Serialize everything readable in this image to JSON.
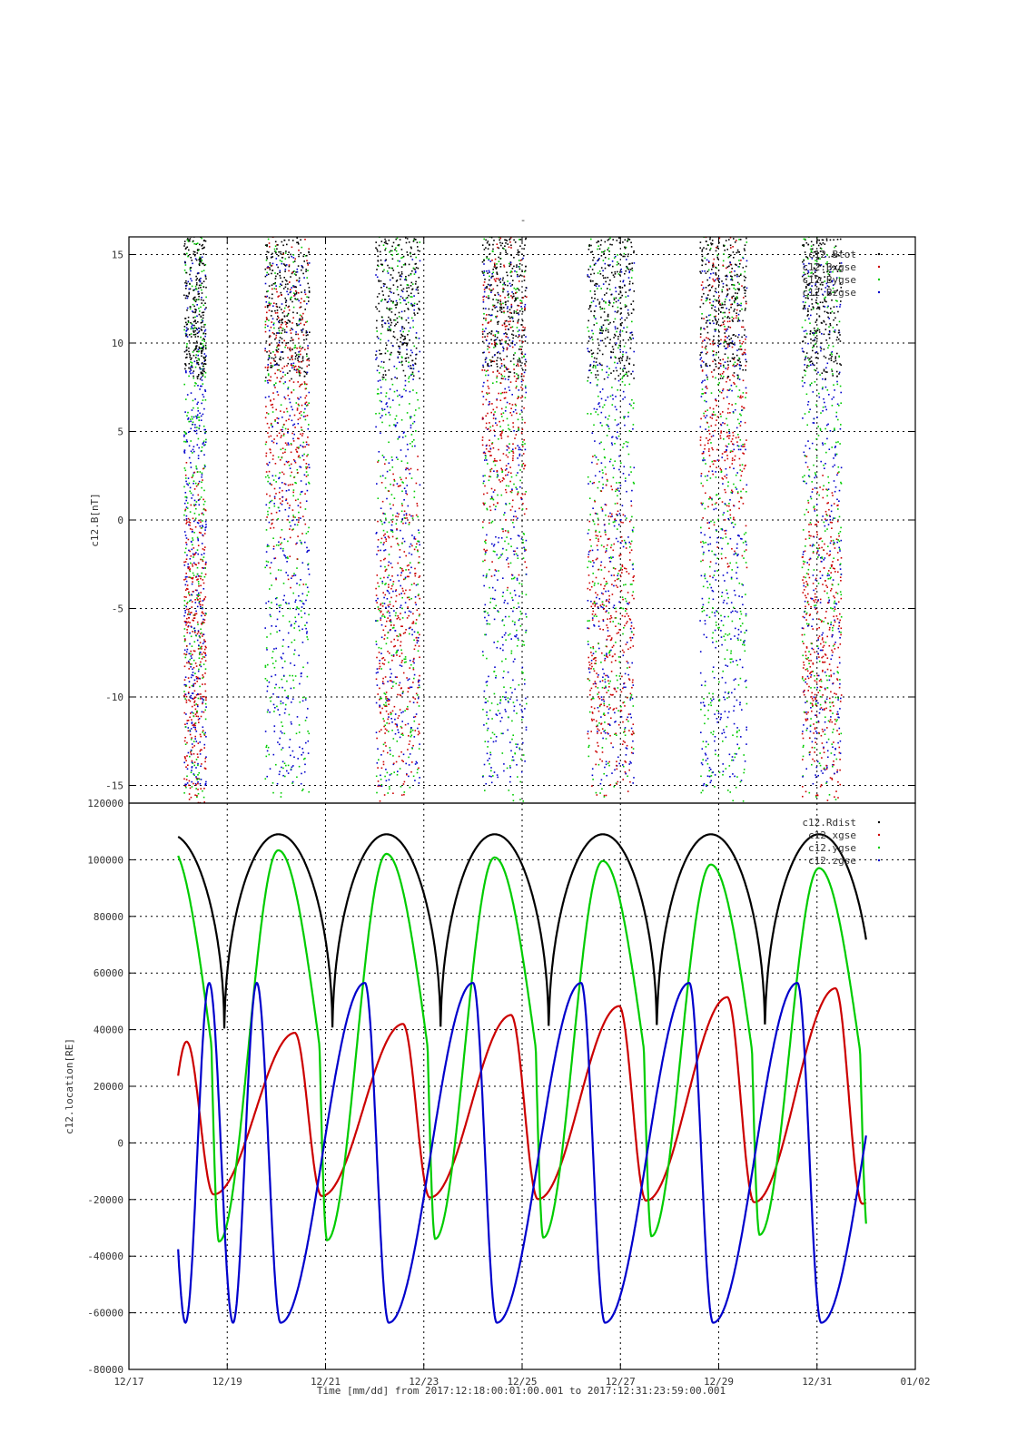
{
  "figure": {
    "top_title": "-",
    "xlabel_text": "Time [mm/dd]  from 2017:12:18:00:01:00.001  to  2017:12:31:23:59:00.001"
  },
  "x_axis": {
    "ticks": [
      {
        "value": "2017-12-17",
        "label": "12/17"
      },
      {
        "value": "2017-12-19",
        "label": "12/19"
      },
      {
        "value": "2017-12-21",
        "label": "12/21"
      },
      {
        "value": "2017-12-23",
        "label": "12/23"
      },
      {
        "value": "2017-12-25",
        "label": "12/25"
      },
      {
        "value": "2017-12-27",
        "label": "12/27"
      },
      {
        "value": "2017-12-29",
        "label": "12/29"
      },
      {
        "value": "2017-12-31",
        "label": "12/31"
      },
      {
        "value": "2018-01-02",
        "label": "01/02"
      }
    ],
    "range": [
      "2017-12-17",
      "2018-01-02"
    ],
    "data_start": "2017-12-18T00:01:00",
    "data_end": "2017-12-31T23:59:00"
  },
  "chart_data": [
    {
      "type": "scatter",
      "ylabel": "c12.B[nT]",
      "ylim": [
        -16,
        16
      ],
      "yticks": [
        -15,
        -10,
        -5,
        0,
        5,
        10,
        15
      ],
      "grid": true,
      "legend_position": "top-right",
      "series": [
        {
          "name": "c12.Btot",
          "color": "#000000"
        },
        {
          "name": "c12.Bxgse",
          "color": "#cc0000"
        },
        {
          "name": "c12.Bygse",
          "color": "#00cc00"
        },
        {
          "name": "c12.Bzgse",
          "color": "#0000cc"
        }
      ]
    },
    {
      "type": "line",
      "ylabel": "c12.location[RE]",
      "ylim": [
        -80000,
        120000
      ],
      "yticks": [
        -80000,
        -60000,
        -40000,
        -20000,
        0,
        20000,
        40000,
        60000,
        80000,
        100000,
        120000
      ],
      "grid": true,
      "legend_position": "top-right",
      "orbit_period_days": 2.2,
      "series": [
        {
          "name": "c12.Rdist",
          "color": "#000000",
          "max": 109000,
          "min": 36500
        },
        {
          "name": "c12.xgse",
          "color": "#cc0000",
          "max_start": 35500,
          "max_end": 55500,
          "min_start": -18000,
          "min_end": -21500
        },
        {
          "name": "c12.ygse",
          "color": "#00cc00",
          "max_start": 104500,
          "max_end": 96500,
          "min_start": -35000,
          "min_end": -32000
        },
        {
          "name": "c12.zgse",
          "color": "#0000cc",
          "max": 56500,
          "min": -63500
        }
      ]
    }
  ]
}
